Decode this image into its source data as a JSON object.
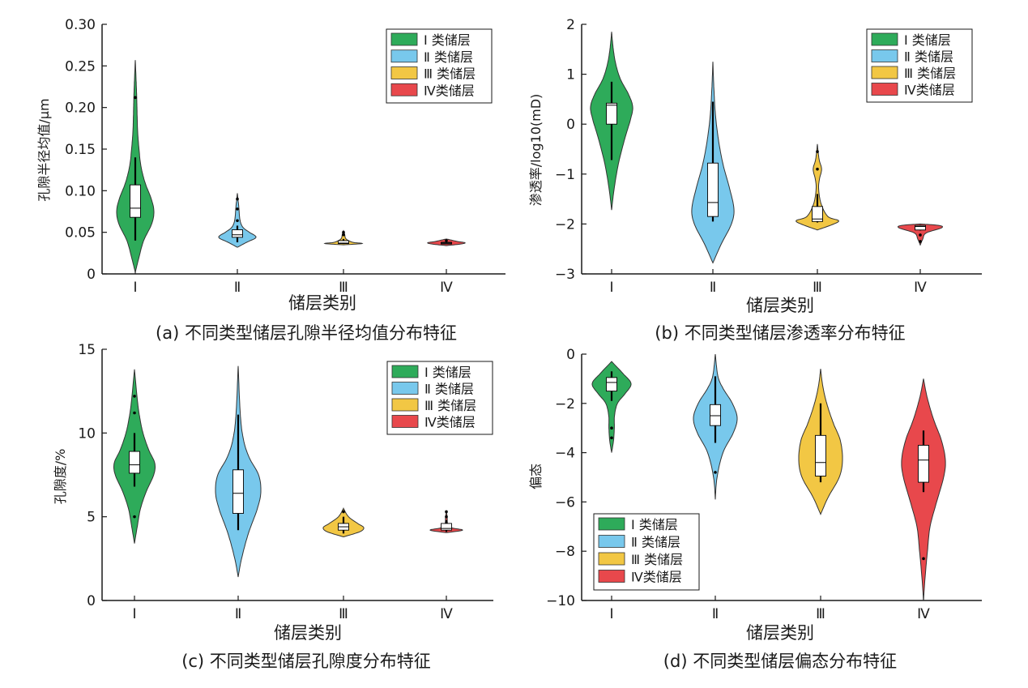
{
  "legend_labels": [
    "Ⅰ 类储层",
    "Ⅱ 类储层",
    "Ⅲ 类储层",
    "Ⅳ类储层"
  ],
  "colors": {
    "Ⅰ": "#2eab5a",
    "Ⅱ": "#78c8ec",
    "Ⅲ": "#f2c744",
    "Ⅳ": "#e8484c",
    "outline": "#333333"
  },
  "chart_data": [
    {
      "type": "violin",
      "caption": "(a) 不同类型储层孔隙半径均值分布特征",
      "xlabel": "储层类别",
      "ylabel": "孔隙半径均值/μm",
      "categories": [
        "Ⅰ",
        "Ⅱ",
        "Ⅲ",
        "Ⅳ"
      ],
      "ylim": [
        0,
        0.3
      ],
      "yticks": [
        0,
        0.05,
        0.1,
        0.15,
        0.2,
        0.25,
        0.3
      ],
      "ytick_labels": [
        "0",
        "0.05",
        "0.10",
        "0.15",
        "0.20",
        "0.25",
        "0.30"
      ],
      "legend_position": "top-right",
      "series": [
        {
          "category": "Ⅰ",
          "q1": 0.068,
          "median": 0.079,
          "q3": 0.107,
          "whisker_low": 0.04,
          "whisker_high": 0.14,
          "outliers": [
            0.212
          ],
          "profile": [
            [
              0.002,
              0
            ],
            [
              0.02,
              0.2
            ],
            [
              0.04,
              0.45
            ],
            [
              0.06,
              0.88
            ],
            [
              0.075,
              1.0
            ],
            [
              0.09,
              0.86
            ],
            [
              0.11,
              0.52
            ],
            [
              0.13,
              0.3
            ],
            [
              0.15,
              0.2
            ],
            [
              0.17,
              0.13
            ],
            [
              0.19,
              0.1
            ],
            [
              0.21,
              0.08
            ],
            [
              0.23,
              0.05
            ],
            [
              0.257,
              0
            ]
          ]
        },
        {
          "category": "Ⅱ",
          "q1": 0.044,
          "median": 0.047,
          "q3": 0.053,
          "whisker_low": 0.038,
          "whisker_high": 0.058,
          "outliers": [
            0.064,
            0.078,
            0.09
          ],
          "profile": [
            [
              0.032,
              0
            ],
            [
              0.038,
              0.5
            ],
            [
              0.044,
              1.0
            ],
            [
              0.05,
              0.65
            ],
            [
              0.056,
              0.3
            ],
            [
              0.065,
              0.14
            ],
            [
              0.08,
              0.08
            ],
            [
              0.097,
              0
            ]
          ]
        },
        {
          "category": "Ⅲ",
          "q1": 0.0365,
          "median": 0.037,
          "q3": 0.04,
          "whisker_low": 0.036,
          "whisker_high": 0.042,
          "outliers": [
            0.047,
            0.05
          ],
          "profile": [
            [
              0.035,
              0
            ],
            [
              0.0365,
              1.0
            ],
            [
              0.038,
              0.5
            ],
            [
              0.042,
              0.14
            ],
            [
              0.048,
              0.06
            ],
            [
              0.052,
              0
            ]
          ]
        },
        {
          "category": "Ⅳ",
          "q1": 0.036,
          "median": 0.037,
          "q3": 0.038,
          "whisker_low": 0.036,
          "whisker_high": 0.039,
          "outliers": [
            0.04
          ],
          "profile": [
            [
              0.034,
              0
            ],
            [
              0.036,
              0.8
            ],
            [
              0.0375,
              1.0
            ],
            [
              0.039,
              0.6
            ],
            [
              0.042,
              0
            ]
          ]
        }
      ]
    },
    {
      "type": "violin",
      "caption": "(b) 不同类型储层渗透率分布特征",
      "xlabel": "储层类别",
      "ylabel": "渗透率/log10(mD)",
      "categories": [
        "Ⅰ",
        "Ⅱ",
        "Ⅲ",
        "Ⅳ"
      ],
      "ylim": [
        -3,
        2
      ],
      "yticks": [
        -3,
        -2,
        -1,
        0,
        1,
        2
      ],
      "ytick_labels": [
        "−3",
        "−2",
        "−1",
        "0",
        "1",
        "2"
      ],
      "legend_position": "top-right",
      "series": [
        {
          "category": "Ⅰ",
          "q1": 0.0,
          "median": 0.38,
          "q3": 0.42,
          "whisker_low": -0.72,
          "whisker_high": 0.85,
          "outliers": [],
          "profile": [
            [
              -1.72,
              0
            ],
            [
              -1.3,
              0.12
            ],
            [
              -0.8,
              0.32
            ],
            [
              -0.3,
              0.62
            ],
            [
              0.1,
              0.9
            ],
            [
              0.35,
              1.0
            ],
            [
              0.6,
              0.8
            ],
            [
              0.9,
              0.42
            ],
            [
              1.2,
              0.2
            ],
            [
              1.5,
              0.08
            ],
            [
              1.85,
              0
            ]
          ]
        },
        {
          "category": "Ⅱ",
          "q1": -1.85,
          "median": -1.57,
          "q3": -0.78,
          "whisker_low": -1.95,
          "whisker_high": 0.45,
          "outliers": [],
          "profile": [
            [
              -2.78,
              0
            ],
            [
              -2.4,
              0.4
            ],
            [
              -2.0,
              0.88
            ],
            [
              -1.7,
              1.0
            ],
            [
              -1.3,
              0.8
            ],
            [
              -0.8,
              0.48
            ],
            [
              -0.3,
              0.26
            ],
            [
              0.2,
              0.12
            ],
            [
              0.7,
              0.05
            ],
            [
              1.25,
              0
            ]
          ]
        },
        {
          "category": "Ⅲ",
          "q1": -1.95,
          "median": -1.9,
          "q3": -1.65,
          "whisker_low": -1.97,
          "whisker_high": -1.4,
          "outliers": [
            -0.9,
            -0.55
          ],
          "profile": [
            [
              -2.12,
              0
            ],
            [
              -2.0,
              0.78
            ],
            [
              -1.93,
              1.0
            ],
            [
              -1.85,
              0.5
            ],
            [
              -1.6,
              0.18
            ],
            [
              -1.3,
              0.06
            ],
            [
              -1.1,
              0.1
            ],
            [
              -0.9,
              0.2
            ],
            [
              -0.7,
              0.08
            ],
            [
              -0.4,
              0
            ]
          ]
        },
        {
          "category": "Ⅳ",
          "q1": -2.12,
          "median": -2.05,
          "q3": -2.03,
          "whisker_low": -2.13,
          "whisker_high": -2.02,
          "outliers": [
            -2.22,
            -2.35
          ],
          "profile": [
            [
              -2.42,
              0
            ],
            [
              -2.3,
              0.12
            ],
            [
              -2.18,
              0.28
            ],
            [
              -2.08,
              1.0
            ],
            [
              -2.03,
              0.9
            ],
            [
              -2.0,
              0
            ]
          ]
        }
      ]
    },
    {
      "type": "violin",
      "caption": "(c) 不同类型储层孔隙度分布特征",
      "xlabel": "储层类别",
      "ylabel": "孔隙度/%",
      "categories": [
        "Ⅰ",
        "Ⅱ",
        "Ⅲ",
        "Ⅳ"
      ],
      "ylim": [
        0,
        15
      ],
      "yticks": [
        0,
        5,
        10,
        15
      ],
      "ytick_labels": [
        "0",
        "5",
        "10",
        "15"
      ],
      "legend_position": "top-right",
      "series": [
        {
          "category": "Ⅰ",
          "q1": 7.6,
          "median": 8.1,
          "q3": 8.9,
          "whisker_low": 6.8,
          "whisker_high": 10.0,
          "outliers": [
            5.0,
            11.2,
            12.2
          ],
          "profile": [
            [
              3.4,
              0
            ],
            [
              4.5,
              0.15
            ],
            [
              5.5,
              0.3
            ],
            [
              6.5,
              0.58
            ],
            [
              7.5,
              0.95
            ],
            [
              8.2,
              1.0
            ],
            [
              9.0,
              0.7
            ],
            [
              10.0,
              0.42
            ],
            [
              11.0,
              0.25
            ],
            [
              12.0,
              0.14
            ],
            [
              13.8,
              0
            ]
          ]
        },
        {
          "category": "Ⅱ",
          "q1": 5.2,
          "median": 6.4,
          "q3": 7.8,
          "whisker_low": 4.2,
          "whisker_high": 11.1,
          "outliers": [],
          "profile": [
            [
              1.4,
              0
            ],
            [
              2.5,
              0.15
            ],
            [
              4.0,
              0.45
            ],
            [
              5.5,
              0.85
            ],
            [
              6.5,
              1.0
            ],
            [
              7.5,
              0.9
            ],
            [
              8.5,
              0.5
            ],
            [
              9.5,
              0.25
            ],
            [
              11.0,
              0.1
            ],
            [
              14.0,
              0
            ]
          ]
        },
        {
          "category": "Ⅲ",
          "q1": 4.2,
          "median": 4.4,
          "q3": 4.6,
          "whisker_low": 4.0,
          "whisker_high": 5.0,
          "outliers": [
            5.3
          ],
          "profile": [
            [
              3.8,
              0
            ],
            [
              4.1,
              0.8
            ],
            [
              4.35,
              1.0
            ],
            [
              4.6,
              0.7
            ],
            [
              5.0,
              0.25
            ],
            [
              5.5,
              0
            ]
          ]
        },
        {
          "category": "Ⅳ",
          "q1": 4.2,
          "median": 4.3,
          "q3": 4.6,
          "whisker_low": 4.1,
          "whisker_high": 4.8,
          "outliers": [
            5.0,
            5.3
          ],
          "profile": [
            [
              4.05,
              0
            ],
            [
              4.2,
              1.0
            ],
            [
              4.35,
              0.3
            ],
            [
              4.6,
              0.08
            ],
            [
              5.0,
              0.05
            ],
            [
              5.3,
              0
            ]
          ]
        }
      ]
    },
    {
      "type": "violin",
      "caption": "(d) 不同类型储层偏态分布特征",
      "xlabel": "储层类别",
      "ylabel": "偏态",
      "categories": [
        "Ⅰ",
        "Ⅱ",
        "Ⅲ",
        "Ⅳ"
      ],
      "ylim": [
        -10,
        0
      ],
      "yticks": [
        -10,
        -8,
        -6,
        -4,
        -2,
        0
      ],
      "ytick_labels": [
        "−10",
        "−8",
        "−6",
        "−4",
        "−2",
        "0"
      ],
      "legend_position": "lower-left",
      "series": [
        {
          "category": "Ⅰ",
          "q1": -1.5,
          "median": -1.15,
          "q3": -0.95,
          "whisker_low": -1.9,
          "whisker_high": -0.7,
          "outliers": [
            -3.0,
            -3.4
          ],
          "profile": [
            [
              -4.0,
              0
            ],
            [
              -3.5,
              0.1
            ],
            [
              -3.0,
              0.14
            ],
            [
              -2.5,
              0.15
            ],
            [
              -2.0,
              0.3
            ],
            [
              -1.6,
              0.7
            ],
            [
              -1.2,
              1.0
            ],
            [
              -0.8,
              0.6
            ],
            [
              -0.3,
              0
            ]
          ]
        },
        {
          "category": "Ⅱ",
          "q1": -2.9,
          "median": -2.5,
          "q3": -2.05,
          "whisker_low": -3.6,
          "whisker_high": -0.9,
          "outliers": [
            -4.8
          ],
          "profile": [
            [
              -5.9,
              0
            ],
            [
              -5.0,
              0.08
            ],
            [
              -4.0,
              0.35
            ],
            [
              -3.2,
              0.82
            ],
            [
              -2.6,
              1.0
            ],
            [
              -2.0,
              0.78
            ],
            [
              -1.4,
              0.36
            ],
            [
              -0.9,
              0.12
            ],
            [
              0.0,
              0
            ]
          ]
        },
        {
          "category": "Ⅲ",
          "q1": -4.95,
          "median": -4.4,
          "q3": -3.3,
          "whisker_low": -5.2,
          "whisker_high": -2.0,
          "outliers": [],
          "profile": [
            [
              -6.5,
              0
            ],
            [
              -5.8,
              0.35
            ],
            [
              -5.0,
              0.85
            ],
            [
              -4.3,
              1.0
            ],
            [
              -3.5,
              0.9
            ],
            [
              -2.8,
              0.58
            ],
            [
              -2.0,
              0.28
            ],
            [
              -1.3,
              0.1
            ],
            [
              -0.6,
              0
            ]
          ]
        },
        {
          "category": "Ⅳ",
          "q1": -5.2,
          "median": -4.3,
          "q3": -3.7,
          "whisker_low": -5.6,
          "whisker_high": -3.1,
          "outliers": [
            -8.3
          ],
          "profile": [
            [
              -10.0,
              0
            ],
            [
              -9.2,
              0.06
            ],
            [
              -8.0,
              0.18
            ],
            [
              -7.0,
              0.3
            ],
            [
              -6.0,
              0.6
            ],
            [
              -5.0,
              0.92
            ],
            [
              -4.3,
              1.0
            ],
            [
              -3.5,
              0.82
            ],
            [
              -2.7,
              0.48
            ],
            [
              -1.8,
              0.18
            ],
            [
              -1.0,
              0
            ]
          ]
        }
      ]
    }
  ]
}
